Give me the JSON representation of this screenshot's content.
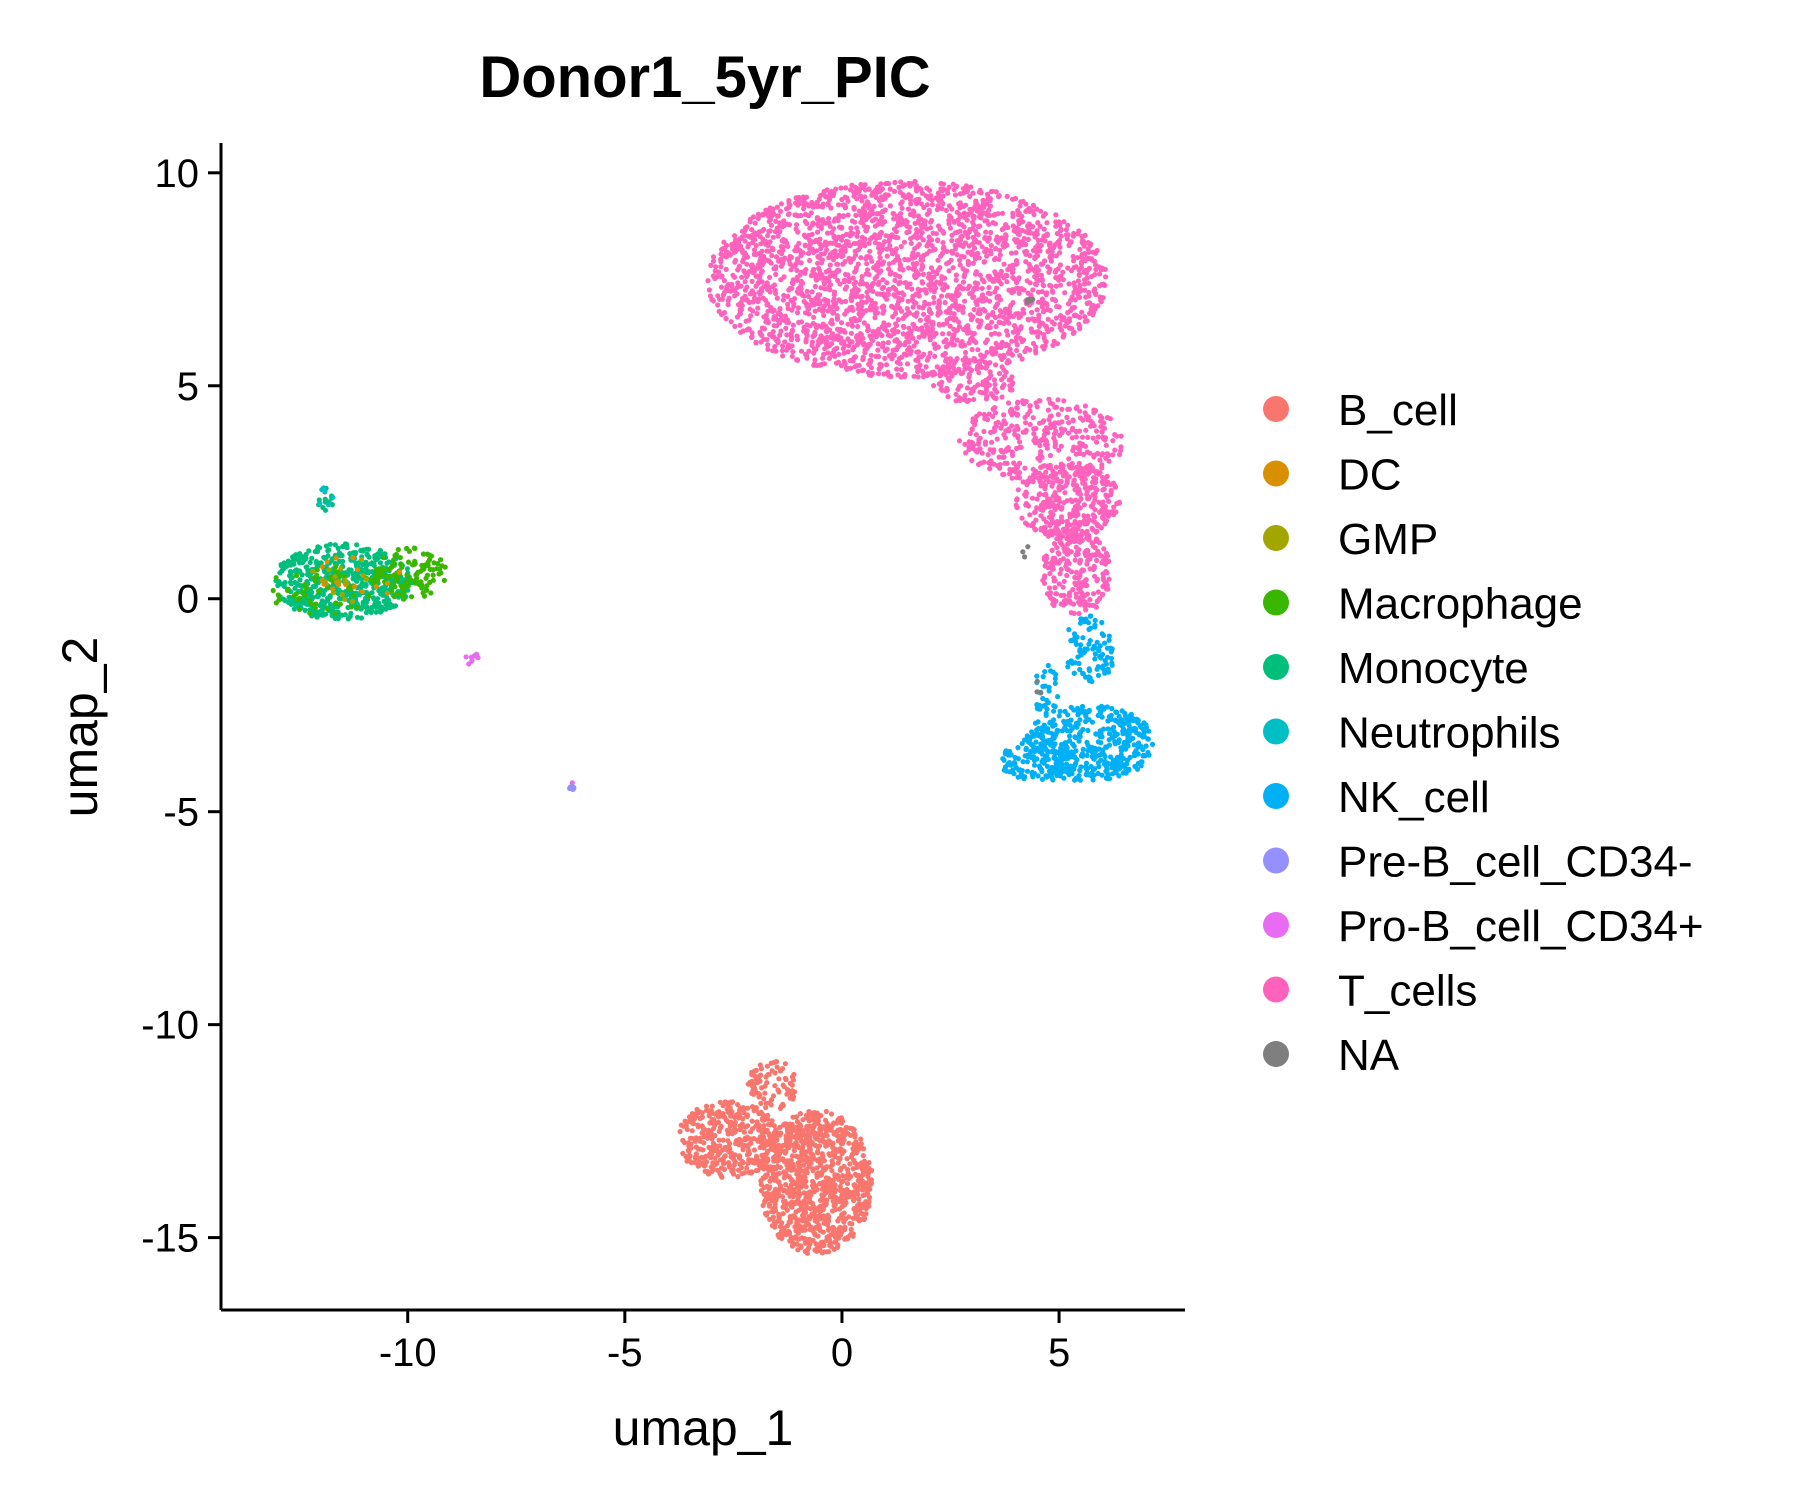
{
  "chart_data": {
    "type": "scatter",
    "title": "Donor1_5yr_PIC",
    "xlabel": "umap_1",
    "ylabel": "umap_2",
    "xlim": [
      -14.3,
      7.9
    ],
    "ylim": [
      -16.7,
      10.7
    ],
    "xticks": [
      -10,
      -5,
      0,
      5
    ],
    "yticks": [
      10,
      5,
      0,
      -5,
      -10,
      -15
    ],
    "xtick_labels": [
      "-10",
      "-5",
      "0",
      "5"
    ],
    "ytick_labels": [
      "10",
      "5",
      "0",
      "-5",
      "-10",
      "-15"
    ],
    "grid": false,
    "legend_position": "right",
    "legend": [
      {
        "label": "B_cell",
        "color": "#F8766D"
      },
      {
        "label": "DC",
        "color": "#D89000"
      },
      {
        "label": "GMP",
        "color": "#A3A500"
      },
      {
        "label": "Macrophage",
        "color": "#39B600"
      },
      {
        "label": "Monocyte",
        "color": "#00BF7D"
      },
      {
        "label": "Neutrophils",
        "color": "#00BFC4"
      },
      {
        "label": "NK_cell",
        "color": "#00B0F6"
      },
      {
        "label": "Pre-B_cell_CD34-",
        "color": "#9590FF"
      },
      {
        "label": "Pro-B_cell_CD34+",
        "color": "#E76BF3"
      },
      {
        "label": "T_cells",
        "color": "#FF62BC"
      },
      {
        "label": "NA",
        "color": "#7F7F7F"
      }
    ],
    "clusters": [
      {
        "series": "T_cells",
        "shape": "ellipse",
        "center": [
          1.5,
          7.5
        ],
        "radius": [
          4.6,
          2.3
        ],
        "count": 2600
      },
      {
        "series": "T_cells",
        "shape": "ellipse",
        "center": [
          4.6,
          3.7
        ],
        "radius": [
          1.9,
          1.0
        ],
        "count": 360
      },
      {
        "series": "T_cells",
        "shape": "ellipse",
        "center": [
          5.2,
          2.3
        ],
        "radius": [
          1.2,
          0.9
        ],
        "count": 320
      },
      {
        "series": "T_cells",
        "shape": "ellipse",
        "center": [
          5.4,
          0.6
        ],
        "radius": [
          0.8,
          1.0
        ],
        "count": 240
      },
      {
        "series": "T_cells",
        "shape": "ellipse",
        "center": [
          3.0,
          5.1
        ],
        "radius": [
          1.0,
          0.5
        ],
        "count": 120
      },
      {
        "series": "NK_cell",
        "shape": "ellipse",
        "center": [
          5.7,
          -3.4
        ],
        "radius": [
          1.5,
          0.9
        ],
        "count": 420
      },
      {
        "series": "NK_cell",
        "shape": "ellipse",
        "center": [
          4.5,
          -3.8
        ],
        "radius": [
          0.9,
          0.5
        ],
        "count": 120
      },
      {
        "series": "NK_cell",
        "shape": "ellipse",
        "center": [
          5.7,
          -1.2
        ],
        "radius": [
          0.6,
          0.8
        ],
        "count": 90
      },
      {
        "series": "NK_cell",
        "shape": "ellipse",
        "center": [
          4.7,
          -2.2
        ],
        "radius": [
          0.3,
          0.7
        ],
        "count": 35
      },
      {
        "series": "B_cell",
        "shape": "ellipse",
        "center": [
          -0.6,
          -13.7
        ],
        "radius": [
          1.3,
          1.7
        ],
        "count": 950
      },
      {
        "series": "B_cell",
        "shape": "ellipse",
        "center": [
          -2.6,
          -12.7
        ],
        "radius": [
          1.2,
          0.9
        ],
        "count": 380
      },
      {
        "series": "B_cell",
        "shape": "ellipse",
        "center": [
          -1.6,
          -11.4
        ],
        "radius": [
          0.6,
          0.6
        ],
        "count": 80
      },
      {
        "series": "Monocyte",
        "shape": "ellipse",
        "center": [
          -11.5,
          0.4
        ],
        "radius": [
          1.6,
          0.9
        ],
        "count": 560
      },
      {
        "series": "Monocyte",
        "shape": "ellipse",
        "center": [
          -11.9,
          2.3
        ],
        "radius": [
          0.2,
          0.3
        ],
        "count": 12
      },
      {
        "series": "Macrophage",
        "shape": "ellipse",
        "center": [
          -10.0,
          0.6
        ],
        "radius": [
          0.9,
          0.6
        ],
        "count": 120
      },
      {
        "series": "Macrophage",
        "shape": "ellipse",
        "center": [
          -12.0,
          0.2
        ],
        "radius": [
          1.2,
          0.6
        ],
        "count": 50
      },
      {
        "series": "DC",
        "shape": "ellipse",
        "center": [
          -10.9,
          0.6
        ],
        "radius": [
          1.2,
          0.6
        ],
        "count": 18
      },
      {
        "series": "GMP",
        "shape": "ellipse",
        "center": [
          -11.3,
          0.5
        ],
        "radius": [
          1.2,
          0.6
        ],
        "count": 15
      },
      {
        "series": "Neutrophils",
        "shape": "ellipse",
        "center": [
          -11.9,
          2.4
        ],
        "radius": [
          0.2,
          0.25
        ],
        "count": 6
      },
      {
        "series": "Pro-B_cell_CD34+",
        "shape": "ellipse",
        "center": [
          -8.5,
          -1.4
        ],
        "radius": [
          0.2,
          0.15
        ],
        "count": 8
      },
      {
        "series": "Pro-B_cell_CD34+",
        "shape": "ellipse",
        "center": [
          -6.2,
          -4.4
        ],
        "radius": [
          0.08,
          0.1
        ],
        "count": 5
      },
      {
        "series": "Pre-B_cell_CD34-",
        "shape": "ellipse",
        "center": [
          -6.2,
          -4.45
        ],
        "radius": [
          0.08,
          0.1
        ],
        "count": 3
      },
      {
        "series": "NA",
        "shape": "ellipse",
        "center": [
          4.3,
          7.0
        ],
        "radius": [
          0.1,
          0.1
        ],
        "count": 5
      },
      {
        "series": "NA",
        "shape": "ellipse",
        "center": [
          4.5,
          -2.2
        ],
        "radius": [
          0.1,
          0.3
        ],
        "count": 3
      },
      {
        "series": "NA",
        "shape": "ellipse",
        "center": [
          4.2,
          1.2
        ],
        "radius": [
          0.1,
          0.3
        ],
        "count": 3
      }
    ]
  }
}
